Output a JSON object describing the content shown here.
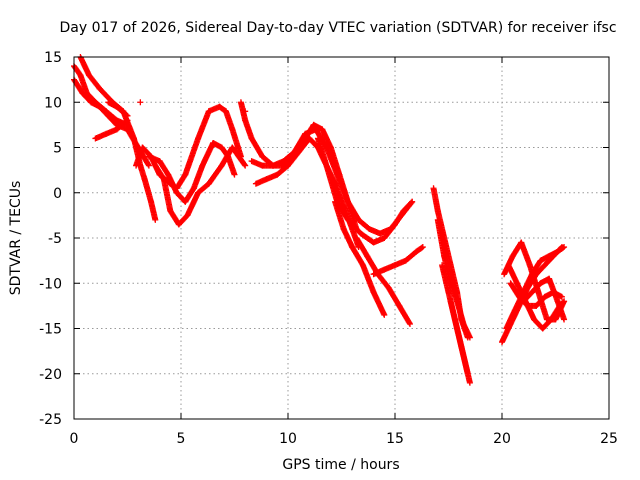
{
  "chart_data": {
    "type": "scatter",
    "title": "Day 017 of 2026, Sidereal Day-to-day VTEC variation (SDTVAR) for receiver ifsc",
    "xlabel": "GPS time / hours",
    "ylabel": "SDTVAR / TECUs",
    "xlim": [
      0,
      25
    ],
    "ylim": [
      -25,
      15
    ],
    "x_ticks": [
      0,
      5,
      10,
      15,
      20,
      25
    ],
    "y_ticks": [
      -25,
      -20,
      -15,
      -10,
      -5,
      0,
      5,
      10,
      15
    ],
    "x_tick_labels": [
      "0",
      "5",
      "10",
      "15",
      "20",
      "25"
    ],
    "y_tick_labels": [
      "-25",
      "-20",
      "-15",
      "-10",
      "-5",
      "0",
      "5",
      "10",
      "15"
    ],
    "grid": true,
    "marker": "+",
    "color": "#ff0000",
    "series": [
      {
        "x": [
          0.0,
          0.3,
          0.6,
          1.0,
          1.5,
          2.0,
          2.5
        ],
        "y": [
          14.0,
          13.0,
          11.0,
          10.0,
          9.0,
          8.0,
          7.5
        ]
      },
      {
        "x": [
          0.0,
          0.4,
          0.8,
          1.2,
          1.6,
          2.0,
          2.5,
          3.0,
          3.5
        ],
        "y": [
          12.5,
          11.0,
          10.0,
          9.5,
          8.5,
          7.5,
          7.0,
          5.0,
          3.0
        ]
      },
      {
        "x": [
          0.3,
          0.7,
          1.2,
          1.8,
          2.3,
          2.8,
          3.1,
          3.3,
          3.6,
          3.8
        ],
        "y": [
          15.0,
          13.0,
          11.5,
          10.0,
          9.0,
          6.0,
          3.0,
          1.5,
          -1.0,
          -3.0
        ]
      },
      {
        "x": [
          1.0,
          1.5,
          2.0,
          2.5
        ],
        "y": [
          6.0,
          6.5,
          7.0,
          8.0
        ]
      },
      {
        "x": [
          1.6,
          2.0,
          2.5
        ],
        "y": [
          10.0,
          9.5,
          8.5
        ]
      },
      {
        "x": [
          2.9,
          3.2,
          3.6,
          4.0,
          4.5,
          4.8,
          5.2,
          5.8,
          6.3,
          6.8,
          7.1,
          7.4,
          7.8
        ],
        "y": [
          3.0,
          5.0,
          4.0,
          2.0,
          1.0,
          0.5,
          2.0,
          6.0,
          9.0,
          9.5,
          9.0,
          7.0,
          4.0
        ]
      },
      {
        "x": [
          3.5,
          4.0,
          4.4,
          4.8,
          5.2,
          5.6,
          6.0,
          6.5,
          6.9,
          7.2,
          7.5
        ],
        "y": [
          4.0,
          3.5,
          2.0,
          0.0,
          -1.0,
          0.5,
          3.0,
          5.5,
          5.0,
          4.0,
          2.0
        ]
      },
      {
        "x": [
          3.8,
          4.2,
          4.5,
          4.9,
          5.3,
          5.8,
          6.3,
          6.9,
          7.4,
          8.0
        ],
        "y": [
          3.0,
          1.5,
          -2.0,
          -3.5,
          -2.5,
          0.0,
          1.0,
          3.0,
          5.0,
          3.0
        ]
      },
      {
        "x": [
          7.8,
          8.0,
          8.3
        ],
        "y": [
          10.0,
          8.0,
          6.0
        ]
      },
      {
        "x": [
          8.3,
          8.8,
          9.3,
          9.8,
          10.3,
          10.8,
          11.2,
          11.6,
          12.0,
          12.4
        ],
        "y": [
          6.0,
          4.0,
          3.0,
          3.0,
          4.0,
          6.0,
          7.5,
          7.0,
          5.0,
          2.0
        ]
      },
      {
        "x": [
          8.3,
          8.8,
          9.3,
          9.8,
          10.3,
          10.8,
          11.3,
          11.8,
          12.3,
          12.8,
          13.2
        ],
        "y": [
          3.5,
          3.0,
          3.0,
          3.5,
          4.5,
          6.5,
          7.0,
          5.0,
          2.0,
          -1.0,
          -4.0
        ]
      },
      {
        "x": [
          8.5,
          9.0,
          9.5,
          10.0,
          10.5,
          11.0,
          11.4,
          11.8,
          12.2,
          12.6,
          13.0,
          13.3
        ],
        "y": [
          1.0,
          1.5,
          2.0,
          3.0,
          4.5,
          6.0,
          5.0,
          3.0,
          1.0,
          -1.5,
          -4.0,
          -6.0
        ]
      },
      {
        "x": [
          11.4,
          11.8,
          12.3,
          12.8,
          13.4,
          14.0,
          14.5,
          15.0,
          15.4,
          15.8
        ],
        "y": [
          6.0,
          3.0,
          -1.0,
          -3.0,
          -4.5,
          -5.5,
          -5.0,
          -3.5,
          -2.0,
          -1.0
        ]
      },
      {
        "x": [
          12.0,
          12.4,
          12.8,
          13.3,
          13.8,
          14.3,
          14.8,
          15.3,
          15.8
        ],
        "y": [
          4.0,
          2.0,
          -1.0,
          -3.0,
          -4.0,
          -4.5,
          -4.0,
          -2.5,
          -1.0
        ]
      },
      {
        "x": [
          12.2,
          12.6,
          13.0,
          13.5,
          14.0,
          14.5
        ],
        "y": [
          -1.0,
          -4.0,
          -6.0,
          -8.0,
          -11.0,
          -13.5
        ]
      },
      {
        "x": [
          13.2,
          13.7,
          14.2,
          14.7,
          15.2,
          15.7
        ],
        "y": [
          -5.0,
          -7.0,
          -9.0,
          -10.5,
          -12.5,
          -14.5
        ]
      },
      {
        "x": [
          14.0,
          14.5,
          15.0,
          15.5,
          16.0,
          16.3
        ],
        "y": [
          -9.0,
          -8.5,
          -8.0,
          -7.5,
          -6.5,
          -6.0
        ]
      },
      {
        "x": [
          16.8,
          17.0,
          17.3,
          17.6,
          17.9,
          18.1,
          18.4
        ],
        "y": [
          0.5,
          -2.0,
          -5.0,
          -8.0,
          -11.0,
          -14.0,
          -16.0
        ]
      },
      {
        "x": [
          17.0,
          17.3,
          17.6,
          17.9,
          18.2,
          18.5
        ],
        "y": [
          -3.0,
          -7.0,
          -10.0,
          -12.0,
          -14.5,
          -16.0
        ]
      },
      {
        "x": [
          17.2,
          17.5,
          17.8,
          18.1,
          18.4
        ],
        "y": [
          -8.0,
          -11.0,
          -14.0,
          -17.0,
          -20.0
        ]
      },
      {
        "x": [
          17.6,
          17.9,
          18.2,
          18.5
        ],
        "y": [
          -12.0,
          -15.0,
          -18.0,
          -21.0
        ]
      },
      {
        "x": [
          20.0,
          20.4,
          20.8,
          21.2,
          21.6,
          22.0,
          22.4,
          22.8
        ],
        "y": [
          -16.5,
          -14.5,
          -12.5,
          -10.5,
          -9.0,
          -8.0,
          -7.0,
          -6.0
        ]
      },
      {
        "x": [
          20.2,
          20.6,
          21.0,
          21.4,
          21.8,
          22.2,
          22.6,
          22.9
        ],
        "y": [
          -15.0,
          -13.0,
          -11.0,
          -9.0,
          -7.5,
          -7.0,
          -6.5,
          -6.0
        ]
      },
      {
        "x": [
          20.1,
          20.5,
          20.9,
          21.3,
          21.7,
          22.1,
          22.5,
          22.9
        ],
        "y": [
          -9.0,
          -7.0,
          -5.5,
          -8.0,
          -11.0,
          -14.0,
          -14.0,
          -12.0
        ]
      },
      {
        "x": [
          20.3,
          20.7,
          21.1,
          21.5,
          21.9,
          22.3,
          22.7,
          22.9
        ],
        "y": [
          -8.0,
          -10.0,
          -12.0,
          -14.0,
          -15.0,
          -14.0,
          -12.5,
          -12.0
        ]
      },
      {
        "x": [
          20.4,
          20.8,
          21.2,
          21.6,
          22.0,
          22.4,
          22.8
        ],
        "y": [
          -10.0,
          -11.5,
          -12.5,
          -12.5,
          -11.5,
          -11.0,
          -11.5
        ]
      },
      {
        "x": [
          21.0,
          21.4,
          21.8,
          22.2,
          22.6,
          22.9
        ],
        "y": [
          -12.0,
          -11.0,
          -10.0,
          -9.5,
          -12.0,
          -14.0
        ]
      }
    ],
    "isolated_points": [
      {
        "x": 3.1,
        "y": 10.0
      },
      {
        "x": 8.0,
        "y": 9.0
      },
      {
        "x": 10.0,
        "y": 3.0
      }
    ]
  }
}
